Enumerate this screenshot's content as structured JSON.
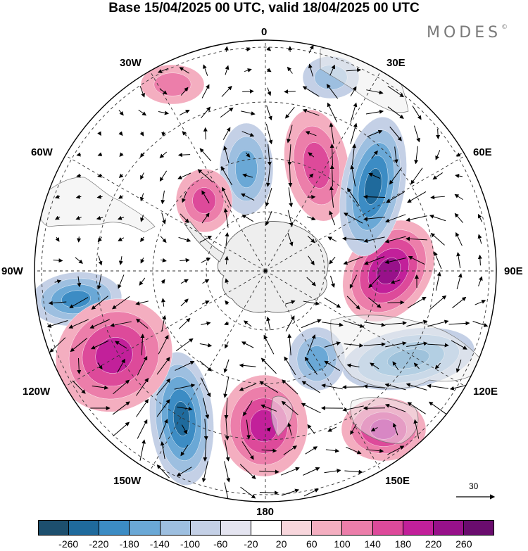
{
  "title": "Base 15/04/2025 00 UTC, valid 18/04/2025 00 UTC",
  "brand": "MODES",
  "brand_mark": "©",
  "longitude_labels": {
    "top": "0",
    "upper_left_30": "30W",
    "upper_right_30": "30E",
    "left_60": "60W",
    "right_60": "60E",
    "left_90": "90W",
    "right_90": "90E",
    "lower_left_120": "120W",
    "lower_right_120": "120E",
    "bottom_left_150": "150W",
    "bottom_right_150": "150E",
    "bottom": "180"
  },
  "reference_vector": {
    "label": "30"
  },
  "colorbar": {
    "colors": [
      "#1d4f6e",
      "#1f6a9c",
      "#3c8cc4",
      "#6aa8d6",
      "#9dbfe0",
      "#c4d0e6",
      "#e4e4f0",
      "#ffffff",
      "#f8d6dc",
      "#f4aec0",
      "#ec7eaa",
      "#dd4a9a",
      "#c2209a",
      "#98118a",
      "#6a0c6e"
    ],
    "tick_labels": [
      "-260",
      "-220",
      "-180",
      "-140",
      "-100",
      "-60",
      "-20",
      "20",
      "60",
      "100",
      "140",
      "180",
      "220",
      "260"
    ]
  },
  "anomaly_features": [
    {
      "sign": "negative",
      "level": 4
    },
    {
      "sign": "negative",
      "level": 3
    },
    {
      "sign": "positive",
      "level": 3
    },
    {
      "sign": "positive",
      "level": 2
    },
    {
      "sign": "negative",
      "level": 2
    },
    {
      "sign": "positive",
      "level": 4
    },
    {
      "sign": "negative",
      "level": 4
    },
    {
      "sign": "positive",
      "level": 3
    },
    {
      "sign": "negative",
      "level": 3
    },
    {
      "sign": "positive",
      "level": 2
    },
    {
      "sign": "positive",
      "level": 3
    },
    {
      "sign": "negative",
      "level": 2
    },
    {
      "sign": "positive",
      "level": 1
    },
    {
      "sign": "negative",
      "level": 1
    }
  ]
}
